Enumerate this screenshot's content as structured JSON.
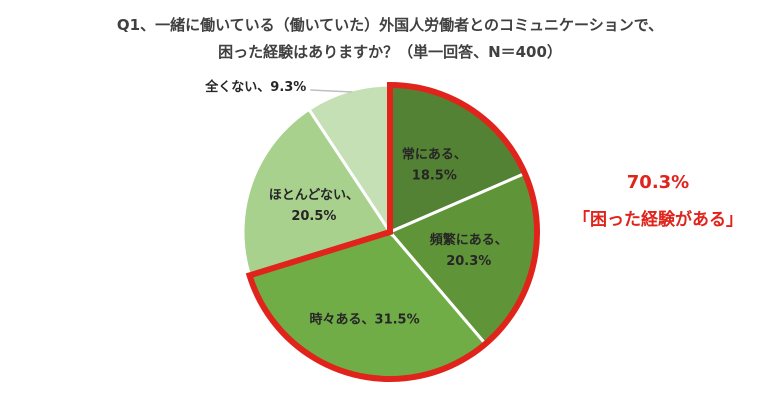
{
  "title": {
    "line1": "Q1、一緒に働いている（働いていた）外国人労働者とのコミュニケーションで、",
    "line2": "困った経験はありますか？（単一回答、N＝400）"
  },
  "highlight": {
    "percent": "70.3%",
    "text": "「困った経験がある」",
    "color": "#e0231b"
  },
  "chart_data": {
    "type": "pie",
    "start": "12 o'clock",
    "direction": "clockwise",
    "slices": [
      {
        "category": "常にある",
        "value": 18.5,
        "label": "常にある、",
        "value_label": "18.5%",
        "color": "#548235",
        "highlighted": true
      },
      {
        "category": "頻繁にある",
        "value": 20.3,
        "label": "頻繁にある、",
        "value_label": "20.3%",
        "color": "#5f9438",
        "highlighted": true
      },
      {
        "category": "時々ある",
        "value": 31.5,
        "label": "時々ある、31.5%",
        "value_label": "",
        "color": "#70ad47",
        "highlighted": true
      },
      {
        "category": "ほとんどない",
        "value": 20.5,
        "label": "ほとんどない、",
        "value_label": "20.5%",
        "color": "#a9d18e",
        "highlighted": false
      },
      {
        "category": "全くない",
        "value": 9.3,
        "label": "全くない、9.3%",
        "value_label": "",
        "color": "#c5e0b4",
        "highlighted": false
      }
    ]
  }
}
